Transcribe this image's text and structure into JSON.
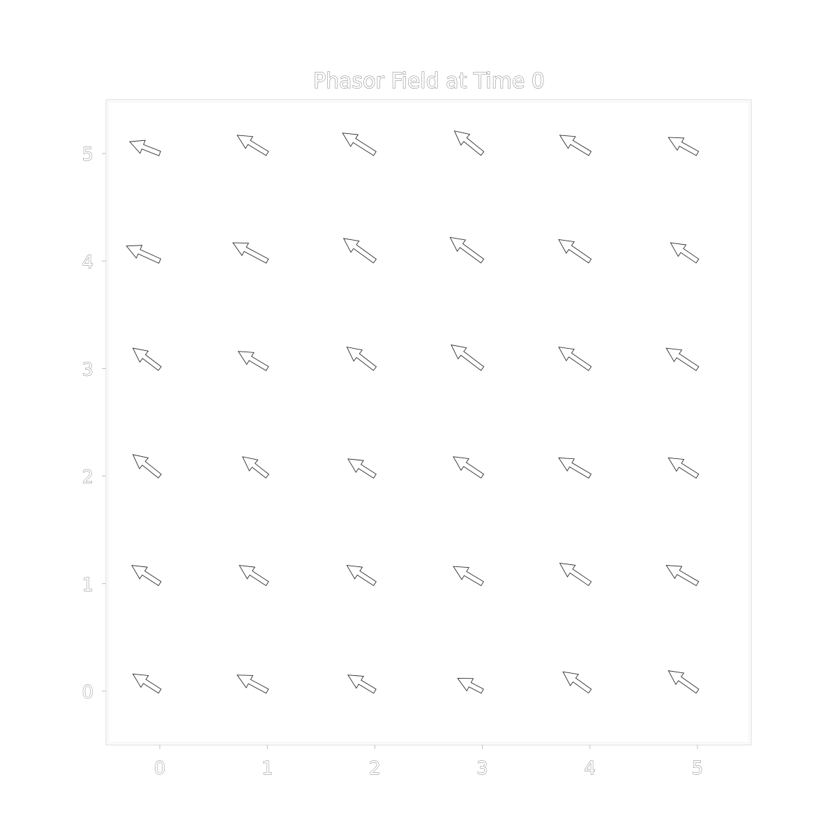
{
  "chart_data": {
    "type": "quiver",
    "title": "Phasor Field at Time 0",
    "xlabel": "",
    "ylabel": "",
    "xlim": [
      -0.5,
      5.5
    ],
    "ylim": [
      -0.5,
      5.5
    ],
    "xticks": [
      0,
      1,
      2,
      3,
      4,
      5
    ],
    "yticks": [
      0,
      1,
      2,
      3,
      4,
      5
    ],
    "grid": false,
    "legend": "none",
    "vectors": [
      {
        "x": 0,
        "y": 0,
        "u": -0.25,
        "v": 0.16
      },
      {
        "x": 1,
        "y": 0,
        "u": -0.28,
        "v": 0.15
      },
      {
        "x": 2,
        "y": 0,
        "u": -0.25,
        "v": 0.15
      },
      {
        "x": 3,
        "y": 0,
        "u": -0.23,
        "v": 0.12
      },
      {
        "x": 4,
        "y": 0,
        "u": -0.25,
        "v": 0.18
      },
      {
        "x": 5,
        "y": 0,
        "u": -0.27,
        "v": 0.19
      },
      {
        "x": 0,
        "y": 1,
        "u": -0.26,
        "v": 0.17
      },
      {
        "x": 1,
        "y": 1,
        "u": -0.26,
        "v": 0.17
      },
      {
        "x": 2,
        "y": 1,
        "u": -0.26,
        "v": 0.17
      },
      {
        "x": 3,
        "y": 1,
        "u": -0.27,
        "v": 0.16
      },
      {
        "x": 4,
        "y": 1,
        "u": -0.28,
        "v": 0.19
      },
      {
        "x": 5,
        "y": 1,
        "u": -0.29,
        "v": 0.17
      },
      {
        "x": 0,
        "y": 2,
        "u": -0.25,
        "v": 0.2
      },
      {
        "x": 1,
        "y": 2,
        "u": -0.23,
        "v": 0.18
      },
      {
        "x": 2,
        "y": 2,
        "u": -0.25,
        "v": 0.16
      },
      {
        "x": 3,
        "y": 2,
        "u": -0.27,
        "v": 0.18
      },
      {
        "x": 4,
        "y": 2,
        "u": -0.29,
        "v": 0.17
      },
      {
        "x": 5,
        "y": 2,
        "u": -0.27,
        "v": 0.17
      },
      {
        "x": 0,
        "y": 3,
        "u": -0.25,
        "v": 0.19
      },
      {
        "x": 1,
        "y": 3,
        "u": -0.27,
        "v": 0.16
      },
      {
        "x": 2,
        "y": 3,
        "u": -0.26,
        "v": 0.2
      },
      {
        "x": 3,
        "y": 3,
        "u": -0.29,
        "v": 0.22
      },
      {
        "x": 4,
        "y": 3,
        "u": -0.29,
        "v": 0.2
      },
      {
        "x": 5,
        "y": 3,
        "u": -0.29,
        "v": 0.19
      },
      {
        "x": 0,
        "y": 4,
        "u": -0.31,
        "v": 0.14
      },
      {
        "x": 1,
        "y": 4,
        "u": -0.32,
        "v": 0.17
      },
      {
        "x": 2,
        "y": 4,
        "u": -0.29,
        "v": 0.21
      },
      {
        "x": 3,
        "y": 4,
        "u": -0.3,
        "v": 0.22
      },
      {
        "x": 4,
        "y": 4,
        "u": -0.29,
        "v": 0.2
      },
      {
        "x": 5,
        "y": 4,
        "u": -0.25,
        "v": 0.17
      },
      {
        "x": 0,
        "y": 5,
        "u": -0.28,
        "v": 0.11
      },
      {
        "x": 1,
        "y": 5,
        "u": -0.28,
        "v": 0.17
      },
      {
        "x": 2,
        "y": 5,
        "u": -0.3,
        "v": 0.19
      },
      {
        "x": 3,
        "y": 5,
        "u": -0.26,
        "v": 0.21
      },
      {
        "x": 4,
        "y": 5,
        "u": -0.28,
        "v": 0.17
      },
      {
        "x": 5,
        "y": 5,
        "u": -0.27,
        "v": 0.15
      }
    ]
  }
}
